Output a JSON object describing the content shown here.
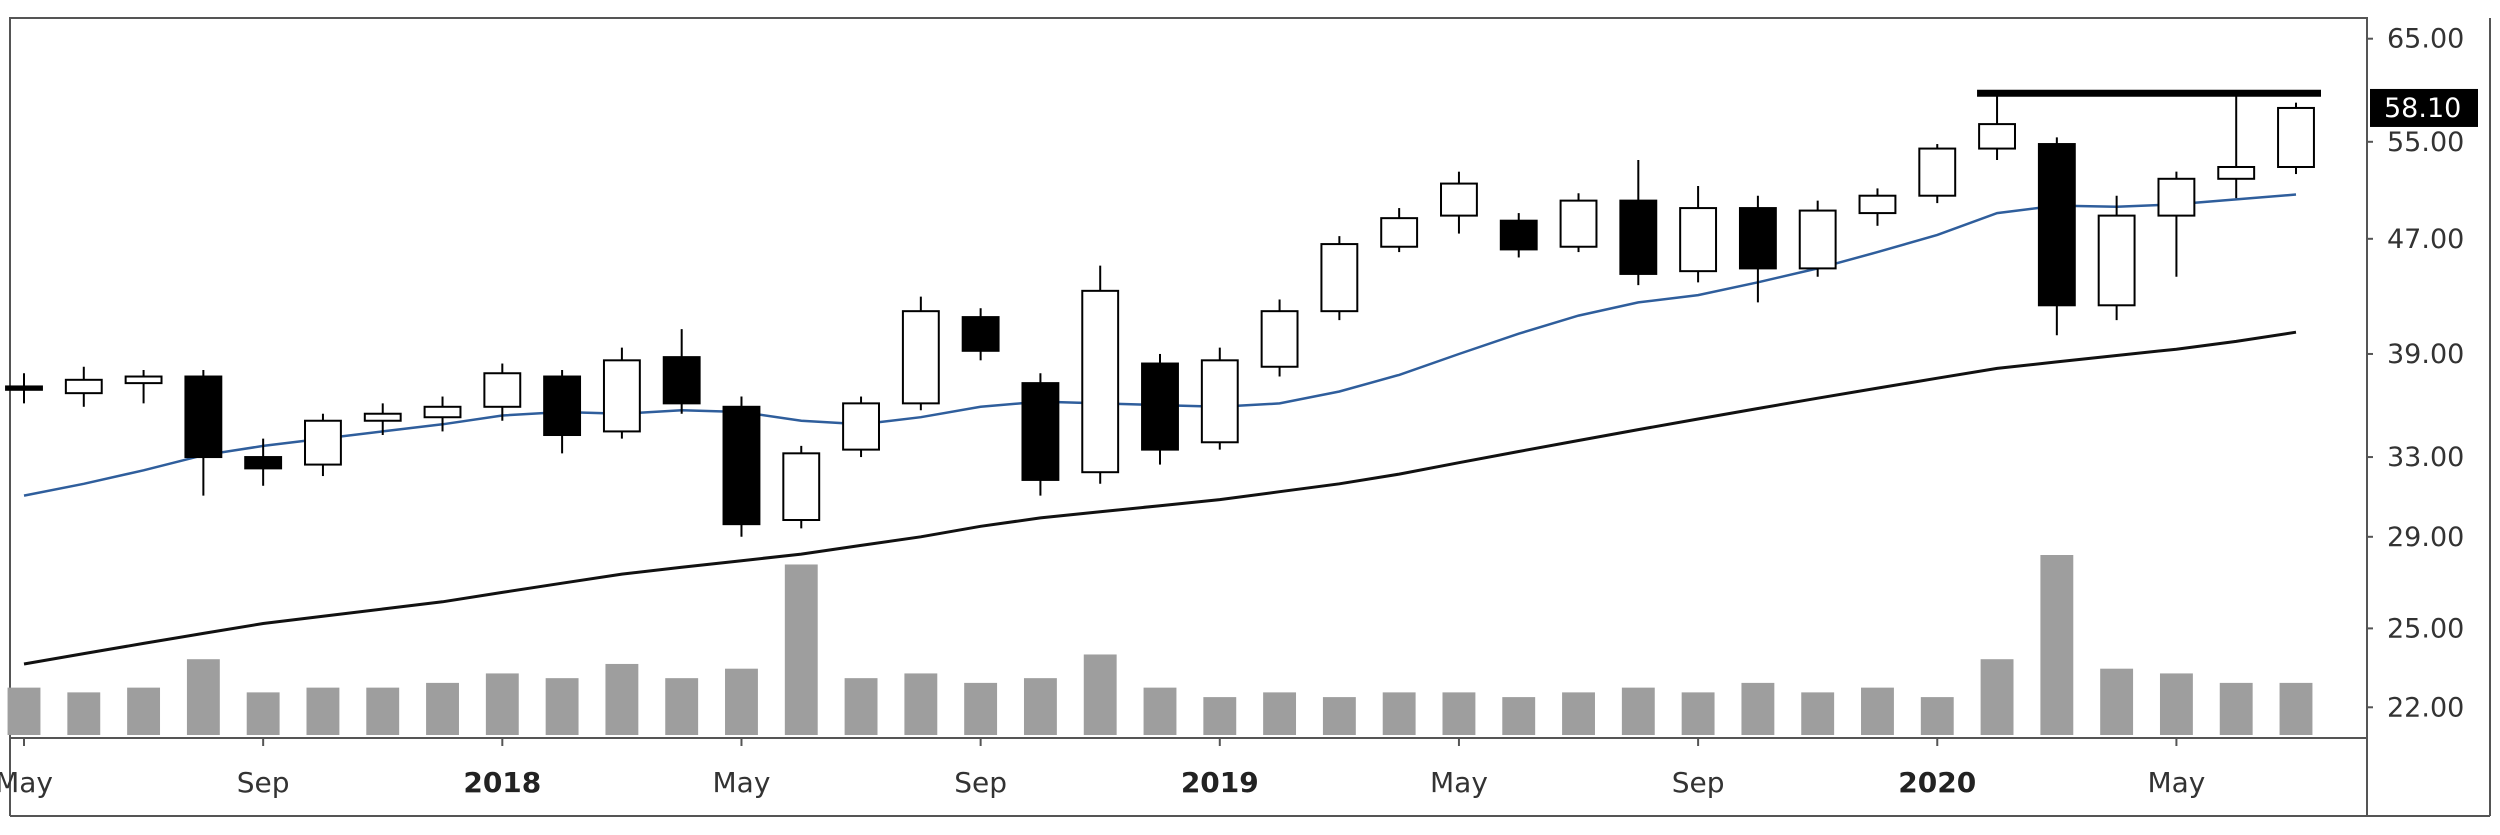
{
  "chart_data": {
    "type": "candlestick",
    "timeframe": "weekly",
    "x_range": [
      "2017-05",
      "2020-07"
    ],
    "y_range": [
      21,
      67
    ],
    "price_scale": "log",
    "y_ticks": [
      "65.00",
      "55.00",
      "47.00",
      "39.00",
      "33.00",
      "29.00",
      "25.00",
      "22.00"
    ],
    "y_tick_values": [
      65,
      55,
      47,
      39,
      33,
      29,
      25,
      22
    ],
    "x_ticks": [
      {
        "label": "May",
        "date": "2017-05",
        "major": false
      },
      {
        "label": "Sep",
        "date": "2017-09",
        "major": false
      },
      {
        "label": "2018",
        "date": "2018-01",
        "major": true
      },
      {
        "label": "May",
        "date": "2018-05",
        "major": false
      },
      {
        "label": "Sep",
        "date": "2018-09",
        "major": false
      },
      {
        "label": "2019",
        "date": "2019-01",
        "major": true
      },
      {
        "label": "May",
        "date": "2019-05",
        "major": false
      },
      {
        "label": "Sep",
        "date": "2019-09",
        "major": false
      },
      {
        "label": "2020",
        "date": "2020-01",
        "major": true
      },
      {
        "label": "May",
        "date": "2020-05",
        "major": false
      }
    ],
    "last_price": "58.10",
    "last_price_value": 58.1,
    "resistance_level": 59.5,
    "resistance_span": [
      "2020-02",
      "2020-07"
    ],
    "colors": {
      "up_candle": "#ffffff",
      "down_candle": "#000000",
      "candle_outline": "#000000",
      "ma_short": "#2f5e9c",
      "ma_long": "#111111",
      "volume_bar": "#9e9e9e",
      "price_tag_bg": "#000000",
      "grid": "none"
    },
    "series": [
      {
        "type": "line",
        "color": "#2f5e9c",
        "values": [
          {
            "x": "2017-05",
            "y": 31.0
          },
          {
            "x": "2017-06",
            "y": 31.6
          },
          {
            "x": "2017-07",
            "y": 32.3
          },
          {
            "x": "2017-08",
            "y": 33.1
          },
          {
            "x": "2017-09",
            "y": 33.6
          },
          {
            "x": "2017-10",
            "y": 34.0
          },
          {
            "x": "2017-11",
            "y": 34.4
          },
          {
            "x": "2017-12",
            "y": 34.8
          },
          {
            "x": "2018-01",
            "y": 35.3
          },
          {
            "x": "2018-02",
            "y": 35.5
          },
          {
            "x": "2018-03",
            "y": 35.4
          },
          {
            "x": "2018-04",
            "y": 35.6
          },
          {
            "x": "2018-05",
            "y": 35.5
          },
          {
            "x": "2018-06",
            "y": 35.0
          },
          {
            "x": "2018-07",
            "y": 34.8
          },
          {
            "x": "2018-08",
            "y": 35.2
          },
          {
            "x": "2018-09",
            "y": 35.8
          },
          {
            "x": "2018-10",
            "y": 36.1
          },
          {
            "x": "2018-11",
            "y": 36.0
          },
          {
            "x": "2018-12",
            "y": 35.9
          },
          {
            "x": "2019-01",
            "y": 35.8
          },
          {
            "x": "2019-02",
            "y": 36.0
          },
          {
            "x": "2019-03",
            "y": 36.7
          },
          {
            "x": "2019-04",
            "y": 37.7
          },
          {
            "x": "2019-05",
            "y": 39.0
          },
          {
            "x": "2019-06",
            "y": 40.3
          },
          {
            "x": "2019-07",
            "y": 41.5
          },
          {
            "x": "2019-08",
            "y": 42.4
          },
          {
            "x": "2019-09",
            "y": 42.9
          },
          {
            "x": "2019-10",
            "y": 43.8
          },
          {
            "x": "2019-11",
            "y": 44.8
          },
          {
            "x": "2019-12",
            "y": 46.0
          },
          {
            "x": "2020-01",
            "y": 47.3
          },
          {
            "x": "2020-02",
            "y": 49.0
          },
          {
            "x": "2020-03",
            "y": 49.6
          },
          {
            "x": "2020-04",
            "y": 49.5
          },
          {
            "x": "2020-05",
            "y": 49.7
          },
          {
            "x": "2020-06",
            "y": 50.1
          },
          {
            "x": "2020-07",
            "y": 50.5
          }
        ]
      },
      {
        "type": "line",
        "color": "#111111",
        "values": [
          {
            "x": "2017-05",
            "y": 23.6
          },
          {
            "x": "2017-06",
            "y": 24.0
          },
          {
            "x": "2017-07",
            "y": 24.4
          },
          {
            "x": "2017-08",
            "y": 24.8
          },
          {
            "x": "2017-09",
            "y": 25.2
          },
          {
            "x": "2017-10",
            "y": 25.5
          },
          {
            "x": "2017-11",
            "y": 25.8
          },
          {
            "x": "2017-12",
            "y": 26.1
          },
          {
            "x": "2018-01",
            "y": 26.5
          },
          {
            "x": "2018-02",
            "y": 26.9
          },
          {
            "x": "2018-03",
            "y": 27.3
          },
          {
            "x": "2018-04",
            "y": 27.6
          },
          {
            "x": "2018-05",
            "y": 27.9
          },
          {
            "x": "2018-06",
            "y": 28.2
          },
          {
            "x": "2018-07",
            "y": 28.6
          },
          {
            "x": "2018-08",
            "y": 29.0
          },
          {
            "x": "2018-09",
            "y": 29.5
          },
          {
            "x": "2018-10",
            "y": 29.9
          },
          {
            "x": "2018-11",
            "y": 30.2
          },
          {
            "x": "2018-12",
            "y": 30.5
          },
          {
            "x": "2019-01",
            "y": 30.8
          },
          {
            "x": "2019-02",
            "y": 31.2
          },
          {
            "x": "2019-03",
            "y": 31.6
          },
          {
            "x": "2019-04",
            "y": 32.1
          },
          {
            "x": "2019-05",
            "y": 32.7
          },
          {
            "x": "2019-06",
            "y": 33.3
          },
          {
            "x": "2019-07",
            "y": 33.9
          },
          {
            "x": "2019-08",
            "y": 34.5
          },
          {
            "x": "2019-09",
            "y": 35.1
          },
          {
            "x": "2019-10",
            "y": 35.7
          },
          {
            "x": "2019-11",
            "y": 36.3
          },
          {
            "x": "2019-12",
            "y": 36.9
          },
          {
            "x": "2020-01",
            "y": 37.5
          },
          {
            "x": "2020-02",
            "y": 38.1
          },
          {
            "x": "2020-03",
            "y": 38.5
          },
          {
            "x": "2020-04",
            "y": 38.9
          },
          {
            "x": "2020-05",
            "y": 39.3
          },
          {
            "x": "2020-06",
            "y": 39.8
          },
          {
            "x": "2020-07",
            "y": 40.4
          }
        ]
      },
      {
        "type": "candlestick",
        "color": "#000000",
        "values": [
          {
            "x": "2017-05",
            "o": 37.0,
            "h": 37.8,
            "l": 36.0,
            "c": 36.8
          },
          {
            "x": "2017-06",
            "o": 36.6,
            "h": 38.2,
            "l": 35.8,
            "c": 37.4
          },
          {
            "x": "2017-07",
            "o": 37.2,
            "h": 38.0,
            "l": 36.0,
            "c": 37.6
          },
          {
            "x": "2017-08",
            "o": 37.6,
            "h": 38.0,
            "l": 31.0,
            "c": 33.0
          },
          {
            "x": "2017-09",
            "o": 33.0,
            "h": 34.0,
            "l": 31.5,
            "c": 32.4
          },
          {
            "x": "2017-10",
            "o": 32.6,
            "h": 35.4,
            "l": 32.0,
            "c": 35.0
          },
          {
            "x": "2017-11",
            "o": 35.0,
            "h": 36.0,
            "l": 34.2,
            "c": 35.4
          },
          {
            "x": "2017-12",
            "o": 35.2,
            "h": 36.4,
            "l": 34.4,
            "c": 35.8
          },
          {
            "x": "2018-01",
            "o": 35.8,
            "h": 38.4,
            "l": 35.0,
            "c": 37.8
          },
          {
            "x": "2018-02",
            "o": 37.6,
            "h": 38.0,
            "l": 33.2,
            "c": 34.2
          },
          {
            "x": "2018-03",
            "o": 34.4,
            "h": 39.4,
            "l": 34.0,
            "c": 38.6
          },
          {
            "x": "2018-04",
            "o": 38.8,
            "h": 40.6,
            "l": 35.4,
            "c": 36.0
          },
          {
            "x": "2018-05",
            "o": 35.8,
            "h": 36.4,
            "l": 29.0,
            "c": 29.6
          },
          {
            "x": "2018-06",
            "o": 29.8,
            "h": 33.6,
            "l": 29.4,
            "c": 33.2
          },
          {
            "x": "2018-07",
            "o": 33.4,
            "h": 36.4,
            "l": 33.0,
            "c": 36.0
          },
          {
            "x": "2018-08",
            "o": 36.0,
            "h": 42.8,
            "l": 35.6,
            "c": 41.8
          },
          {
            "x": "2018-09",
            "o": 41.4,
            "h": 42.0,
            "l": 38.6,
            "c": 39.2
          },
          {
            "x": "2018-10",
            "o": 37.2,
            "h": 37.8,
            "l": 31.0,
            "c": 31.8
          },
          {
            "x": "2018-11",
            "o": 32.2,
            "h": 45.0,
            "l": 31.6,
            "c": 43.2
          },
          {
            "x": "2018-12",
            "o": 38.4,
            "h": 39.0,
            "l": 32.6,
            "c": 33.4
          },
          {
            "x": "2019-01",
            "o": 33.8,
            "h": 39.4,
            "l": 33.4,
            "c": 38.6
          },
          {
            "x": "2019-02",
            "o": 38.2,
            "h": 42.6,
            "l": 37.6,
            "c": 41.8
          },
          {
            "x": "2019-03",
            "o": 41.8,
            "h": 47.2,
            "l": 41.2,
            "c": 46.6
          },
          {
            "x": "2019-04",
            "o": 46.4,
            "h": 49.4,
            "l": 46.0,
            "c": 48.6
          },
          {
            "x": "2019-05",
            "o": 48.8,
            "h": 52.4,
            "l": 47.4,
            "c": 51.4
          },
          {
            "x": "2019-06",
            "o": 48.4,
            "h": 49.0,
            "l": 45.6,
            "c": 46.2
          },
          {
            "x": "2019-07",
            "o": 46.4,
            "h": 50.6,
            "l": 46.0,
            "c": 50.0
          },
          {
            "x": "2019-08",
            "o": 50.0,
            "h": 53.4,
            "l": 43.6,
            "c": 44.4
          },
          {
            "x": "2019-09",
            "o": 44.6,
            "h": 51.2,
            "l": 43.8,
            "c": 49.4
          },
          {
            "x": "2019-10",
            "o": 49.4,
            "h": 50.4,
            "l": 42.4,
            "c": 44.8
          },
          {
            "x": "2019-11",
            "o": 44.8,
            "h": 50.0,
            "l": 44.2,
            "c": 49.2
          },
          {
            "x": "2019-12",
            "o": 49.0,
            "h": 51.0,
            "l": 48.0,
            "c": 50.4
          },
          {
            "x": "2020-01",
            "o": 50.4,
            "h": 54.8,
            "l": 49.8,
            "c": 54.4
          },
          {
            "x": "2020-02",
            "o": 54.4,
            "h": 59.8,
            "l": 53.4,
            "c": 56.6
          },
          {
            "x": "2020-03",
            "o": 54.8,
            "h": 55.4,
            "l": 40.2,
            "c": 42.2
          },
          {
            "x": "2020-04",
            "o": 42.2,
            "h": 50.4,
            "l": 41.2,
            "c": 48.8
          },
          {
            "x": "2020-05",
            "o": 48.8,
            "h": 52.4,
            "l": 44.2,
            "c": 51.8
          },
          {
            "x": "2020-06",
            "o": 51.8,
            "h": 59.2,
            "l": 50.2,
            "c": 52.8
          },
          {
            "x": "2020-07",
            "o": 52.8,
            "h": 58.6,
            "l": 52.2,
            "c": 58.1
          }
        ]
      },
      {
        "type": "bar",
        "color": "#9e9e9e",
        "values": [
          {
            "x": "2017-05",
            "y": 1.0
          },
          {
            "x": "2017-06",
            "y": 0.9
          },
          {
            "x": "2017-07",
            "y": 1.0
          },
          {
            "x": "2017-08",
            "y": 1.6
          },
          {
            "x": "2017-09",
            "y": 0.9
          },
          {
            "x": "2017-10",
            "y": 1.0
          },
          {
            "x": "2017-11",
            "y": 1.0
          },
          {
            "x": "2017-12",
            "y": 1.1
          },
          {
            "x": "2018-01",
            "y": 1.3
          },
          {
            "x": "2018-02",
            "y": 1.2
          },
          {
            "x": "2018-03",
            "y": 1.5
          },
          {
            "x": "2018-04",
            "y": 1.2
          },
          {
            "x": "2018-05",
            "y": 1.4
          },
          {
            "x": "2018-06",
            "y": 3.6
          },
          {
            "x": "2018-07",
            "y": 1.2
          },
          {
            "x": "2018-08",
            "y": 1.3
          },
          {
            "x": "2018-09",
            "y": 1.1
          },
          {
            "x": "2018-10",
            "y": 1.2
          },
          {
            "x": "2018-11",
            "y": 1.7
          },
          {
            "x": "2018-12",
            "y": 1.0
          },
          {
            "x": "2019-01",
            "y": 0.8
          },
          {
            "x": "2019-02",
            "y": 0.9
          },
          {
            "x": "2019-03",
            "y": 0.8
          },
          {
            "x": "2019-04",
            "y": 0.9
          },
          {
            "x": "2019-05",
            "y": 0.9
          },
          {
            "x": "2019-06",
            "y": 0.8
          },
          {
            "x": "2019-07",
            "y": 0.9
          },
          {
            "x": "2019-08",
            "y": 1.0
          },
          {
            "x": "2019-09",
            "y": 0.9
          },
          {
            "x": "2019-10",
            "y": 1.1
          },
          {
            "x": "2019-11",
            "y": 0.9
          },
          {
            "x": "2019-12",
            "y": 1.0
          },
          {
            "x": "2020-01",
            "y": 0.8
          },
          {
            "x": "2020-02",
            "y": 1.6
          },
          {
            "x": "2020-03",
            "y": 3.8
          },
          {
            "x": "2020-04",
            "y": 1.4
          },
          {
            "x": "2020-05",
            "y": 1.3
          },
          {
            "x": "2020-06",
            "y": 1.1
          },
          {
            "x": "2020-07",
            "y": 1.1
          }
        ]
      }
    ]
  }
}
